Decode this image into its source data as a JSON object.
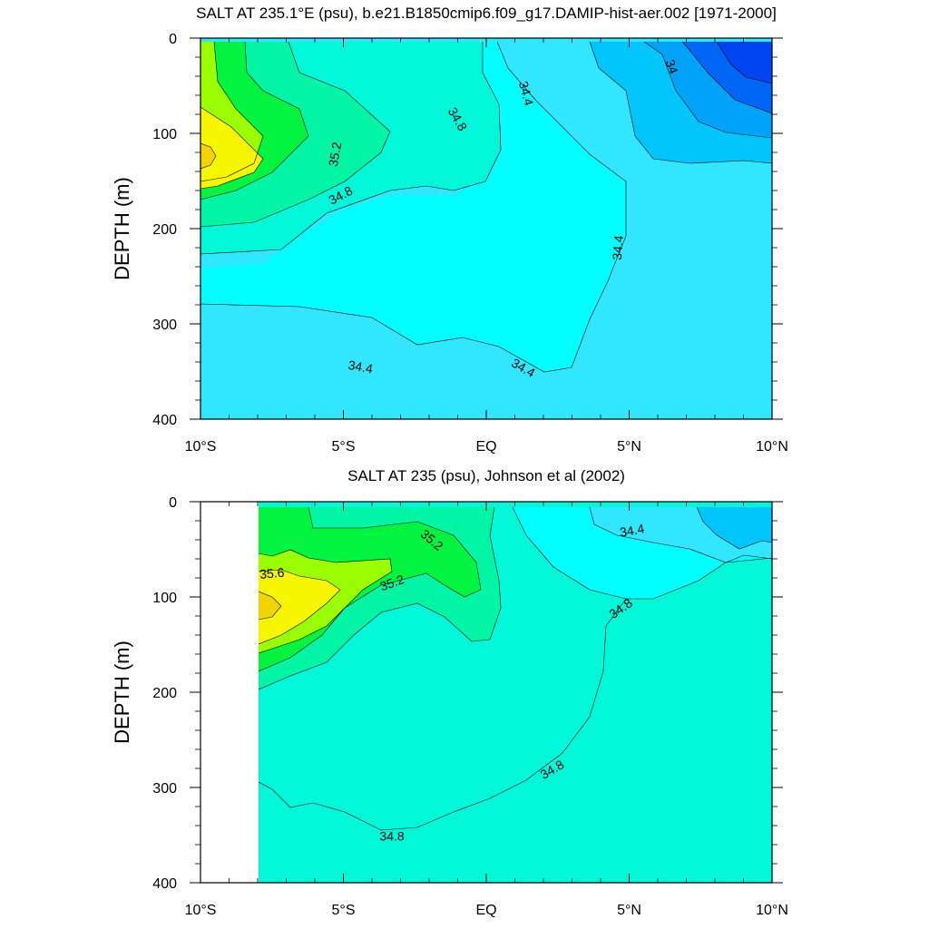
{
  "colors": {
    "s34_0": "#0044f2",
    "s34_0b": "#0066f5",
    "s34_2": "#00a3f7",
    "s34_3": "#00c6fb",
    "s34_4": "#31e7ff",
    "s34_5": "#00ffff",
    "s34_8": "#00f7d8",
    "s35_0": "#00f5a5",
    "s35_2": "#00f440",
    "s35_4": "#9cff00",
    "s35_6": "#f6f600",
    "s35_8": "#f2d400"
  },
  "chart_data": [
    {
      "type": "contour",
      "title": "SALT AT 235.1°E (psu), b.e21.B1850cmip6.f09_g17.DAMIP-hist-aer.002 [1971-2000]",
      "xlabel": "",
      "ylabel": "DEPTH (m)",
      "xlim": [
        -10,
        10
      ],
      "ylim": [
        400,
        0
      ],
      "x_ticks": [
        -10,
        -5,
        0,
        5,
        10
      ],
      "x_tick_labels": [
        "10°S",
        "5°S",
        "EQ",
        "5°N",
        "10°N"
      ],
      "y_ticks": [
        0,
        100,
        200,
        300,
        400
      ],
      "y_tick_labels": [
        "0",
        "100",
        "200",
        "300",
        "400"
      ],
      "grid": false,
      "contour_labels": [
        {
          "text": "34",
          "x": 6.5,
          "y": 30,
          "angle": 70
        },
        {
          "text": "34.4",
          "x": 1.4,
          "y": 58,
          "angle": 75
        },
        {
          "text": "34.8",
          "x": -1.0,
          "y": 85,
          "angle": 60
        },
        {
          "text": "35.2",
          "x": -5.3,
          "y": 122,
          "angle": -80
        },
        {
          "text": "34.8",
          "x": -5.1,
          "y": 165,
          "angle": -28
        },
        {
          "text": "34.4",
          "x": 4.6,
          "y": 220,
          "angle": -85
        },
        {
          "text": "34.4",
          "x": -4.4,
          "y": 345,
          "angle": 10
        },
        {
          "text": "34.4",
          "x": 1.3,
          "y": 346,
          "angle": 30
        }
      ]
    },
    {
      "type": "contour",
      "title": "SALT AT 235 (psu), Johnson et al (2002)",
      "xlabel": "",
      "ylabel": "DEPTH (m)",
      "xlim": [
        -10,
        10
      ],
      "ylim": [
        400,
        0
      ],
      "x_ticks": [
        -10,
        -5,
        0,
        5,
        10
      ],
      "x_tick_labels": [
        "10°S",
        "5°S",
        "EQ",
        "5°N",
        "10°N"
      ],
      "y_ticks": [
        0,
        100,
        200,
        300,
        400
      ],
      "y_tick_labels": [
        "0",
        "100",
        "200",
        "300",
        "400"
      ],
      "data_x_range": [
        -8,
        10
      ],
      "grid": false,
      "contour_labels": [
        {
          "text": "34.4",
          "x": 5.1,
          "y": 30,
          "angle": -10
        },
        {
          "text": "35.2",
          "x": -1.9,
          "y": 40,
          "angle": 40
        },
        {
          "text": "35.6",
          "x": -7.5,
          "y": 75,
          "angle": -5
        },
        {
          "text": "35.2",
          "x": -3.3,
          "y": 85,
          "angle": -20
        },
        {
          "text": "34.8",
          "x": 4.7,
          "y": 112,
          "angle": -35
        },
        {
          "text": "34.8",
          "x": 2.3,
          "y": 281,
          "angle": -30
        },
        {
          "text": "34.8",
          "x": -3.3,
          "y": 351,
          "angle": 0
        }
      ]
    }
  ]
}
